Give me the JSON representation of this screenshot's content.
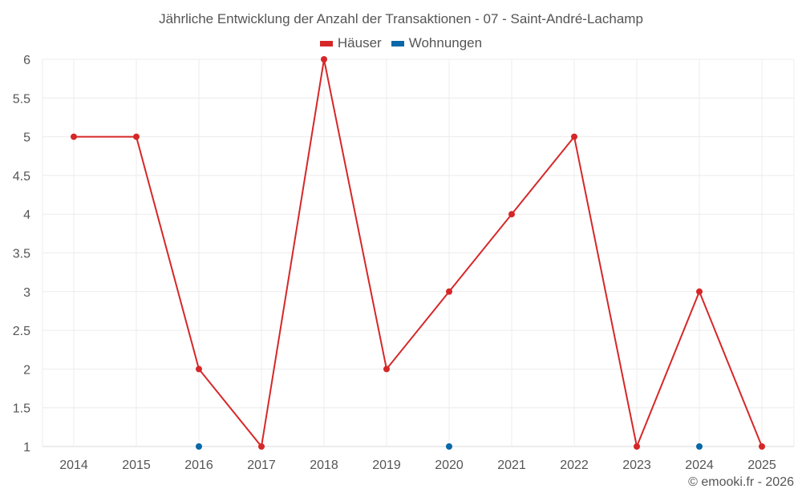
{
  "header": {
    "title": "Jährliche Entwicklung der Anzahl der Transaktionen - 07 - Saint-André-Lachamp"
  },
  "legend": [
    {
      "label": "Häuser",
      "color": "#d62728"
    },
    {
      "label": "Wohnungen",
      "color": "#0868a8"
    }
  ],
  "footer": {
    "credit": "© emooki.fr - 2026"
  },
  "chart_data": {
    "type": "line",
    "title": "Jährliche Entwicklung der Anzahl der Transaktionen - 07 - Saint-André-Lachamp",
    "xlabel": "",
    "ylabel": "",
    "categories": [
      "2014",
      "2015",
      "2016",
      "2017",
      "2018",
      "2019",
      "2020",
      "2021",
      "2022",
      "2023",
      "2024",
      "2025"
    ],
    "series": [
      {
        "name": "Häuser",
        "color": "#d62728",
        "values": [
          5,
          5,
          2,
          1,
          6,
          2,
          3,
          4,
          5,
          1,
          3,
          1
        ]
      },
      {
        "name": "Wohnungen",
        "color": "#0868a8",
        "values": [
          null,
          null,
          1,
          null,
          null,
          null,
          1,
          null,
          null,
          null,
          1,
          null
        ]
      }
    ],
    "ylim": [
      1,
      6
    ],
    "yticks": [
      "1",
      "1.5",
      "2",
      "2.5",
      "3",
      "3.5",
      "4",
      "4.5",
      "5",
      "5.5",
      "6"
    ],
    "grid": true,
    "legend_position": "top"
  }
}
